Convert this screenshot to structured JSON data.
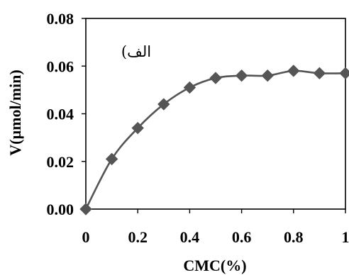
{
  "chart_data": {
    "type": "scatter",
    "xlabel": "CMC(%)",
    "ylabel": "V(µmol/min)",
    "annotation": "الف)",
    "xlim": [
      0,
      1
    ],
    "ylim": [
      0,
      0.08
    ],
    "x_ticks": [
      "0",
      "0.2",
      "0.4",
      "0.6",
      "0.8",
      "1"
    ],
    "y_ticks": [
      "0.00",
      "0.02",
      "0.04",
      "0.06",
      "0.08"
    ],
    "grid": false,
    "legend": "none",
    "series": [
      {
        "marker": "diamond",
        "color": "#555555",
        "line": "smooth",
        "points": [
          {
            "x": 0,
            "y": 0
          },
          {
            "x": 0.1,
            "y": 0.021
          },
          {
            "x": 0.2,
            "y": 0.034
          },
          {
            "x": 0.3,
            "y": 0.044
          },
          {
            "x": 0.4,
            "y": 0.051
          },
          {
            "x": 0.5,
            "y": 0.055
          },
          {
            "x": 0.6,
            "y": 0.056
          },
          {
            "x": 0.7,
            "y": 0.056
          },
          {
            "x": 0.8,
            "y": 0.058
          },
          {
            "x": 0.9,
            "y": 0.057
          },
          {
            "x": 1.0,
            "y": 0.057
          }
        ]
      }
    ]
  }
}
